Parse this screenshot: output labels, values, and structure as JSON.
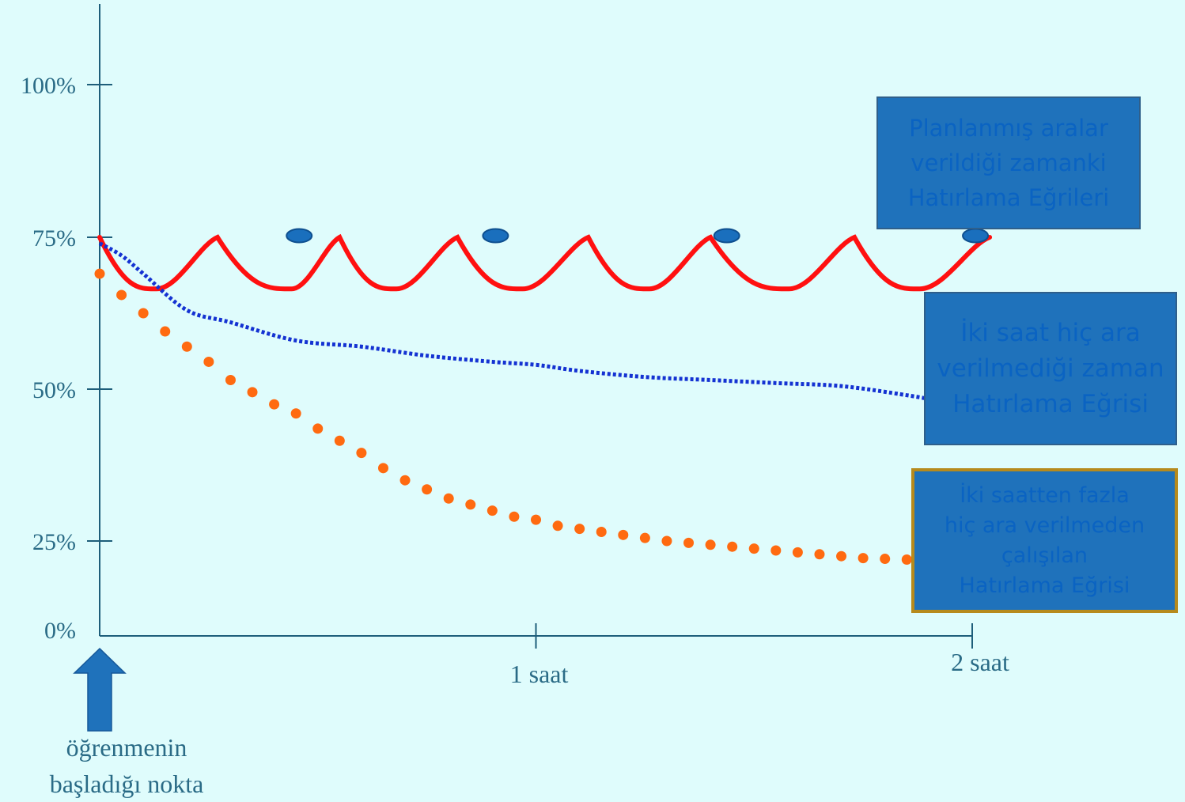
{
  "chart_data": {
    "type": "line",
    "ylim": [
      0,
      100
    ],
    "xlim": [
      0,
      2
    ],
    "y_ticks": [
      "0%",
      "25%",
      "50%",
      "75%",
      "100%"
    ],
    "y_tick_values": [
      0,
      25,
      50,
      75,
      100
    ],
    "x_ticks": [
      "1 saat",
      "2 saat"
    ],
    "x_tick_values": [
      1,
      2
    ],
    "grid": false,
    "series": [
      {
        "key": "planned",
        "color": "#ff1010",
        "style": "solid",
        "x": [
          0,
          0.13,
          0.27,
          0.44,
          0.55,
          0.68,
          0.82,
          0.97,
          1.12,
          1.26,
          1.4,
          1.58,
          1.73,
          1.88,
          2.04
        ],
        "values": [
          75,
          66.5,
          75,
          66.5,
          75,
          66.5,
          75,
          66.5,
          75,
          66.5,
          75,
          66.5,
          75,
          66.5,
          75
        ],
        "markers": {
          "x": [
            0.49,
            0.94,
            1.47,
            2.04
          ],
          "values": [
            75,
            75,
            75,
            75
          ],
          "color": "#1a6fbd"
        }
      },
      {
        "key": "no_break",
        "color": "#1432d2",
        "style": "dotted",
        "x": [
          0,
          0.05,
          0.1,
          0.2,
          0.3,
          0.45,
          0.6,
          0.75,
          0.9,
          1.0,
          1.1,
          1.25,
          1.4,
          1.55,
          1.7,
          1.85,
          1.93
        ],
        "values": [
          74,
          72,
          69,
          63,
          61,
          58,
          57,
          55.5,
          54.5,
          54,
          53,
          52,
          51.5,
          51,
          50.5,
          49,
          48
        ]
      },
      {
        "key": "over_two_hours",
        "color": "#ff6a10",
        "style": "dots",
        "x": [
          0,
          0.05,
          0.1,
          0.15,
          0.2,
          0.25,
          0.3,
          0.35,
          0.4,
          0.45,
          0.5,
          0.55,
          0.6,
          0.65,
          0.7,
          0.75,
          0.8,
          0.85,
          0.9,
          0.95,
          1.0,
          1.05,
          1.1,
          1.15,
          1.2,
          1.25,
          1.3,
          1.35,
          1.4,
          1.45,
          1.5,
          1.55,
          1.6,
          1.65,
          1.7,
          1.75,
          1.8,
          1.85,
          1.9
        ],
        "values": [
          69,
          65.5,
          62.5,
          59.5,
          57,
          54.5,
          51.5,
          49.5,
          47.5,
          46,
          43.5,
          41.5,
          39.5,
          37,
          35,
          33.5,
          32,
          31,
          30,
          29,
          28.5,
          27.5,
          27,
          26.5,
          26,
          25.5,
          25,
          24.5,
          24,
          23.5,
          23,
          22.5,
          22,
          21.5,
          21,
          20.5,
          20.3,
          20.1,
          20
        ]
      }
    ]
  },
  "legends": {
    "planned": "Planlanmış aralar\nverildiği zamanki\nHatırlama Eğrileri",
    "no_break": "İki saat hiç ara\nverilmediği zaman\nHatırlama Eğrisi",
    "over_two_hours": "İki saatten fazla\nhiç ara verilmeden\nçalışılan\nHatırlama Eğrisi"
  },
  "start_label": "öğrenmenin\nbaşladığı nokta",
  "colors": {
    "background": "#dffcfc",
    "axis": "#1e5e7a",
    "legend_fill": "#1f72bb",
    "legend_text": "#0a63c2",
    "arrow": "#1f72bb"
  }
}
